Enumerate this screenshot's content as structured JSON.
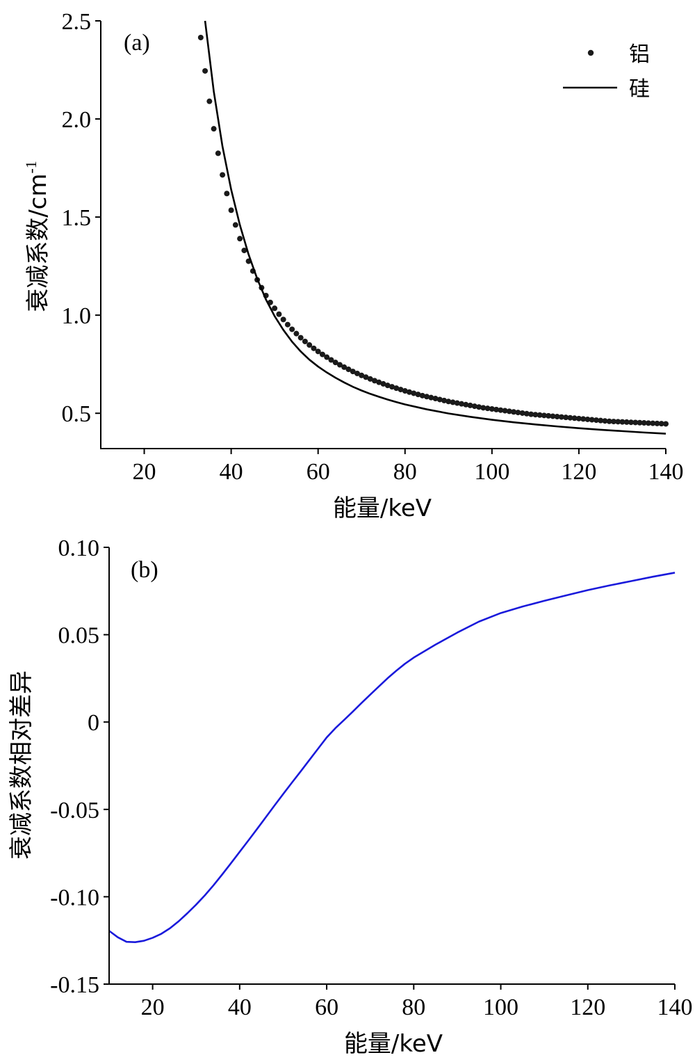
{
  "chart_data": [
    {
      "panel_label": "(a)",
      "type": "line",
      "xlabel": "能量/keV",
      "ylabel": "衰减系数/cm",
      "ylabel_sup": "-1",
      "xlim": [
        10,
        140
      ],
      "ylim": [
        0.32,
        2.5
      ],
      "xticks": [
        20,
        40,
        60,
        80,
        100,
        120,
        140
      ],
      "xtick_labels": [
        "20",
        "40",
        "60",
        "80",
        "100",
        "120",
        "140"
      ],
      "yticks": [
        0.5,
        1.0,
        1.5,
        2.0,
        2.5
      ],
      "ytick_labels": [
        "0.5",
        "1.0",
        "1.5",
        "2.0",
        "2.5"
      ],
      "grid": false,
      "legend_position": "top-right",
      "series": [
        {
          "name": "铝",
          "style": "dots",
          "color": "#1a1a1a",
          "x": [
            33,
            34,
            35,
            36,
            37,
            38,
            39,
            40,
            41,
            42,
            43,
            44,
            45,
            46,
            47,
            48,
            49,
            50,
            51,
            52,
            53,
            54,
            55,
            56,
            57,
            58,
            59,
            60,
            61,
            62,
            63,
            64,
            65,
            66,
            67,
            68,
            69,
            70,
            71,
            72,
            73,
            74,
            75,
            76,
            77,
            78,
            79,
            80,
            81,
            82,
            83,
            84,
            85,
            86,
            87,
            88,
            89,
            90,
            91,
            92,
            93,
            94,
            95,
            96,
            97,
            98,
            99,
            100,
            101,
            102,
            103,
            104,
            105,
            106,
            107,
            108,
            109,
            110,
            111,
            112,
            113,
            114,
            115,
            116,
            117,
            118,
            119,
            120,
            121,
            122,
            123,
            124,
            125,
            126,
            127,
            128,
            129,
            130,
            131,
            132,
            133,
            134,
            135,
            136,
            137,
            138,
            139,
            140
          ],
          "y": [
            2.415,
            2.245,
            2.09,
            1.95,
            1.825,
            1.715,
            1.62,
            1.535,
            1.46,
            1.39,
            1.33,
            1.275,
            1.225,
            1.18,
            1.14,
            1.1,
            1.065,
            1.035,
            1.005,
            0.978,
            0.952,
            0.928,
            0.906,
            0.885,
            0.866,
            0.848,
            0.831,
            0.815,
            0.8,
            0.786,
            0.772,
            0.759,
            0.747,
            0.735,
            0.724,
            0.713,
            0.703,
            0.693,
            0.684,
            0.675,
            0.666,
            0.658,
            0.65,
            0.642,
            0.635,
            0.628,
            0.621,
            0.614,
            0.608,
            0.602,
            0.596,
            0.59,
            0.585,
            0.58,
            0.575,
            0.57,
            0.565,
            0.56,
            0.556,
            0.552,
            0.548,
            0.544,
            0.54,
            0.536,
            0.532,
            0.528,
            0.525,
            0.522,
            0.519,
            0.516,
            0.513,
            0.51,
            0.507,
            0.504,
            0.501,
            0.498,
            0.495,
            0.493,
            0.491,
            0.489,
            0.487,
            0.485,
            0.483,
            0.481,
            0.479,
            0.477,
            0.475,
            0.473,
            0.471,
            0.469,
            0.467,
            0.465,
            0.463,
            0.461,
            0.459,
            0.458,
            0.457,
            0.456,
            0.455,
            0.454,
            0.453,
            0.452,
            0.451,
            0.45,
            0.449,
            0.448,
            0.447,
            0.446
          ]
        },
        {
          "name": "硅",
          "style": "line",
          "color": "#000000",
          "x": [
            34,
            36,
            38,
            40,
            42,
            44,
            46,
            48,
            50,
            52,
            54,
            56,
            58,
            60,
            62,
            64,
            66,
            68,
            70,
            72,
            74,
            76,
            78,
            80,
            85,
            90,
            95,
            100,
            105,
            110,
            115,
            120,
            125,
            130,
            135,
            140
          ],
          "y": [
            2.5,
            2.14,
            1.86,
            1.64,
            1.46,
            1.31,
            1.185,
            1.08,
            0.995,
            0.925,
            0.865,
            0.815,
            0.773,
            0.738,
            0.708,
            0.681,
            0.657,
            0.635,
            0.616,
            0.599,
            0.584,
            0.57,
            0.557,
            0.545,
            0.52,
            0.499,
            0.482,
            0.467,
            0.454,
            0.443,
            0.433,
            0.424,
            0.416,
            0.409,
            0.402,
            0.396
          ]
        }
      ]
    },
    {
      "panel_label": "(b)",
      "type": "line",
      "xlabel": "能量/keV",
      "ylabel": "衰减系数相对差异",
      "xlim": [
        10,
        140
      ],
      "ylim": [
        -0.15,
        0.1
      ],
      "xticks": [
        20,
        40,
        60,
        80,
        100,
        120,
        140
      ],
      "xtick_labels": [
        "20",
        "40",
        "60",
        "80",
        "100",
        "120",
        "140"
      ],
      "yticks": [
        -0.15,
        -0.1,
        -0.05,
        0,
        0.05,
        0.1
      ],
      "ytick_labels": [
        "-0.15",
        "-0.10",
        "-0.05",
        "0",
        "0.05",
        "0.10"
      ],
      "grid": false,
      "series": [
        {
          "style": "line",
          "color": "#1a1adb",
          "x": [
            10,
            12,
            14,
            16,
            18,
            20,
            22,
            24,
            26,
            28,
            30,
            32,
            34,
            36,
            38,
            40,
            42,
            44,
            46,
            48,
            50,
            52,
            54,
            56,
            58,
            60,
            62,
            64,
            66,
            68,
            70,
            72,
            74,
            76,
            78,
            80,
            85,
            90,
            95,
            100,
            105,
            110,
            115,
            120,
            125,
            130,
            135,
            140
          ],
          "y": [
            -0.1195,
            -0.1232,
            -0.1258,
            -0.126,
            -0.1252,
            -0.1235,
            -0.1212,
            -0.118,
            -0.114,
            -0.1094,
            -0.1045,
            -0.0992,
            -0.0934,
            -0.0872,
            -0.0808,
            -0.0743,
            -0.0678,
            -0.0612,
            -0.0545,
            -0.0478,
            -0.0412,
            -0.0347,
            -0.0283,
            -0.0218,
            -0.0153,
            -0.0088,
            -0.0035,
            0.0012,
            0.006,
            0.0109,
            0.0157,
            0.0204,
            0.0251,
            0.0294,
            0.0334,
            0.0369,
            0.0443,
            0.0512,
            0.0575,
            0.0624,
            0.0661,
            0.0694,
            0.0725,
            0.0755,
            0.0782,
            0.0807,
            0.0832,
            0.0855
          ]
        }
      ]
    }
  ]
}
